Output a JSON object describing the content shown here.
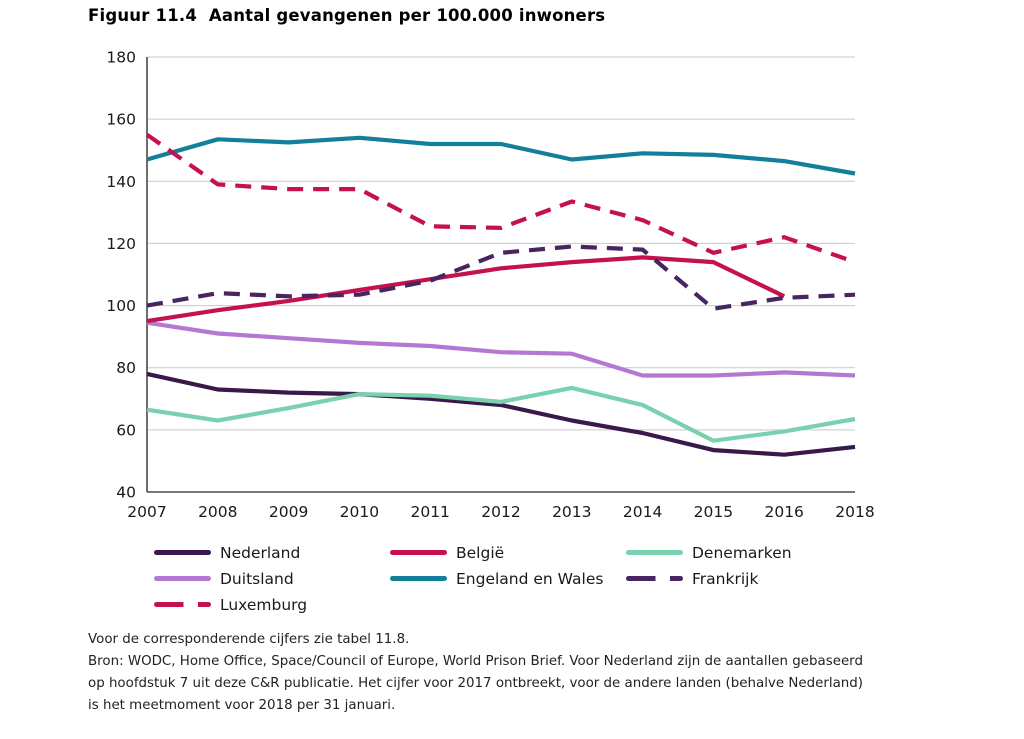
{
  "page": {
    "title": "Figuur 11.4  Aantal gevangenen per 100.000 inwoners"
  },
  "chart_data": {
    "type": "line",
    "title": "Figuur 11.4  Aantal gevangenen per 100.000 inwoners",
    "xlabel": "",
    "ylabel": "",
    "ylim": [
      40,
      180
    ],
    "y_ticks": [
      40,
      60,
      80,
      100,
      120,
      140,
      160,
      180
    ],
    "x_categories": [
      "2007",
      "2008",
      "2009",
      "2010",
      "2011",
      "2012",
      "2013",
      "2014",
      "2015",
      "2016",
      "2018"
    ],
    "grid": "horizontal",
    "legend_position": "bottom",
    "series": [
      {
        "name": "Nederland",
        "color": "#38194a",
        "dash": false,
        "values": [
          78,
          73,
          72,
          71.5,
          70,
          68,
          63,
          59,
          53.5,
          52,
          54.5
        ]
      },
      {
        "name": "België",
        "color": "#c5114e",
        "dash": false,
        "values": [
          95,
          98.5,
          101.5,
          105,
          108.5,
          112,
          114,
          115.5,
          114,
          103,
          null
        ]
      },
      {
        "name": "Denemarken",
        "color": "#79d1ad",
        "dash": false,
        "values": [
          66.5,
          63,
          67,
          71.5,
          71,
          69,
          73.5,
          68,
          56.5,
          59.5,
          63.5
        ]
      },
      {
        "name": "Duitsland",
        "color": "#b478d2",
        "dash": false,
        "values": [
          94.5,
          91,
          89.5,
          88,
          87,
          85,
          84.5,
          77.5,
          77.5,
          78.5,
          77.5
        ]
      },
      {
        "name": "Engeland en Wales",
        "color": "#137f9b",
        "dash": false,
        "values": [
          147,
          153.5,
          152.5,
          154,
          152,
          152,
          147,
          149,
          148.5,
          146.5,
          142.5
        ]
      },
      {
        "name": "Frankrijk",
        "color": "#472560",
        "dash": true,
        "values": [
          100,
          104,
          103,
          103.5,
          108,
          117,
          119,
          118,
          99,
          102.5,
          103.5
        ]
      },
      {
        "name": "Luxemburg",
        "color": "#c5114e",
        "dash": true,
        "values": [
          155,
          139,
          137.5,
          137.5,
          125.5,
          125,
          133.5,
          127.5,
          117,
          122,
          114
        ]
      }
    ]
  },
  "footnotes": {
    "line1": "Voor de corresponderende cijfers zie tabel 11.8.",
    "body": "Bron: WODC, Home Office, Space/Council of Europe, World Prison Brief. Voor Nederland zijn de aantallen gebaseerd op hoofdstuk 7 uit deze C&R publicatie. Het cijfer voor 2017 ontbreekt, voor de andere landen (behalve Nederland) is het meetmoment voor 2018 per 31 januari."
  }
}
